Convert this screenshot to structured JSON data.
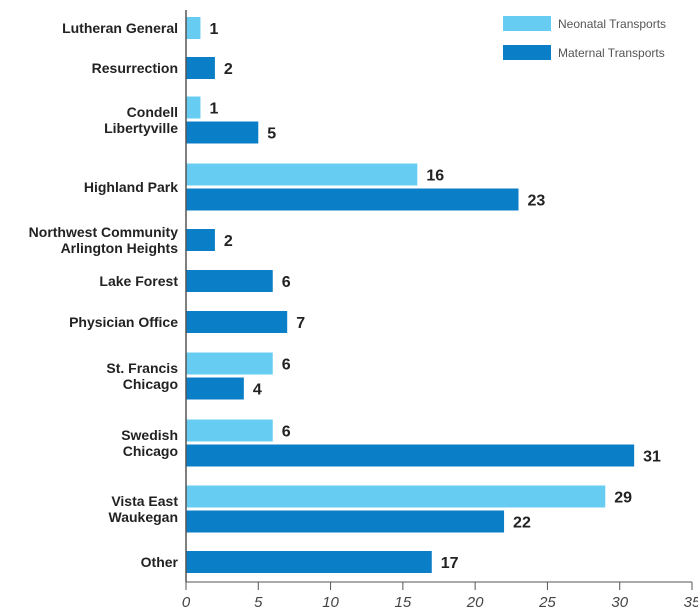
{
  "chart_data": {
    "type": "bar",
    "orientation": "horizontal",
    "title": "",
    "xlabel": "",
    "ylabel": "",
    "xlim": [
      0,
      35
    ],
    "xticks": [
      0,
      5,
      10,
      15,
      20,
      25,
      30,
      35
    ],
    "grid": false,
    "legend_position": "top-right",
    "categories": [
      [
        "Lutheran General"
      ],
      [
        "Resurrection"
      ],
      [
        "Condell",
        "Libertyville"
      ],
      [
        "Highland Park"
      ],
      [
        "Northwest Community",
        "Arlington Heights"
      ],
      [
        "Lake Forest"
      ],
      [
        "Physician Office"
      ],
      [
        "St. Francis",
        "Chicago"
      ],
      [
        "Swedish",
        "Chicago"
      ],
      [
        "Vista East",
        "Waukegan"
      ],
      [
        "Other"
      ]
    ],
    "series": [
      {
        "name": "Neonatal Transports",
        "color": "#66ccf2",
        "values": [
          1,
          null,
          1,
          16,
          null,
          null,
          null,
          6,
          6,
          29,
          null
        ]
      },
      {
        "name": "Maternal Transports",
        "color": "#0a7ec6",
        "values": [
          null,
          2,
          5,
          23,
          2,
          6,
          7,
          4,
          31,
          22,
          17
        ]
      }
    ]
  }
}
